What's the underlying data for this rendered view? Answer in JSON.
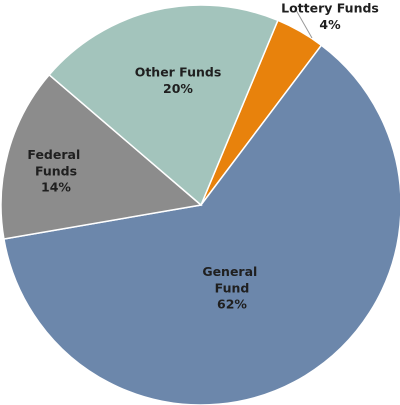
{
  "chart_data": {
    "type": "pie",
    "categories": [
      "Lottery Funds",
      "General Fund",
      "Federal Funds",
      "Other Funds"
    ],
    "values": [
      4,
      62,
      14,
      20
    ],
    "value_labels": [
      "4%",
      "62%",
      "14%",
      "20%"
    ],
    "colors": [
      "#e8820c",
      "#6c87ab",
      "#8c8c8c",
      "#a3c4bc"
    ]
  }
}
